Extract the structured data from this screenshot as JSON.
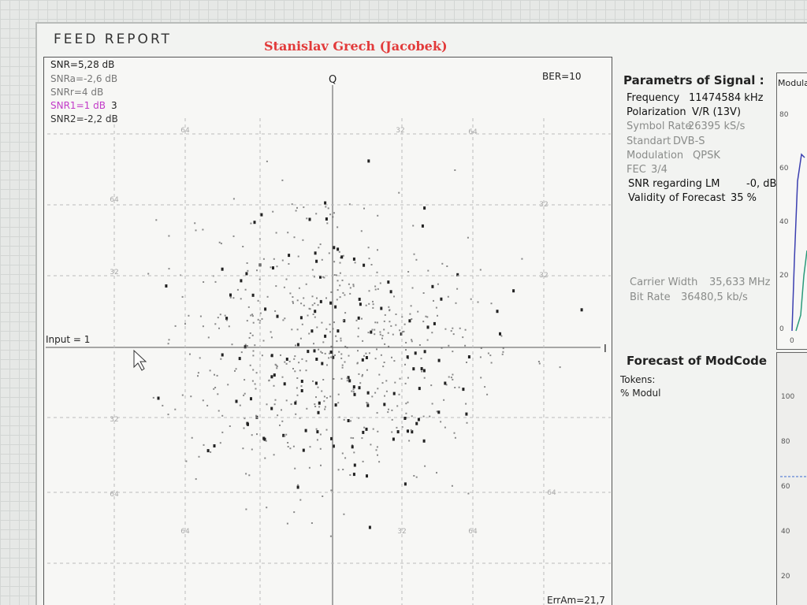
{
  "header": {
    "title": "FEED REPORT",
    "author": "Stanislav Grech (Jacobek)"
  },
  "constellation": {
    "snr": [
      "SNR=5,28 dB",
      "SNRa=-2,6 dB",
      "SNRr=4 dB",
      "SNR1=1 dB",
      "SNR2=-2,2 dB"
    ],
    "snr1_extra": "3",
    "ber": "BER=10",
    "q_axis": "Q",
    "i_axis": "I",
    "input": "Input = 1",
    "err": "ErrAm=21,7",
    "grid_labels": [
      "64",
      "32",
      "64",
      "64",
      "32",
      "32",
      "32",
      "32",
      "64",
      "64",
      "64",
      "32",
      "64"
    ]
  },
  "parameters": {
    "title": "Parametrs of Signal :",
    "rows": [
      [
        "Frequency",
        "11474584 kHz"
      ],
      [
        "Polarization",
        "V/R (13V)"
      ],
      [
        "Symbol Rate",
        "26395 kS/s"
      ],
      [
        "Standart",
        "DVB-S"
      ],
      [
        "Modulation",
        "QPSK"
      ],
      [
        "FEC",
        "3/4"
      ],
      [
        "SNR regarding LM",
        "-0, dB"
      ],
      [
        "Validity of Forecast",
        "35 %"
      ]
    ],
    "carrier": [
      [
        "Carrier Width",
        "35,633 MHz"
      ],
      [
        "Bit Rate",
        "36480,5 kb/s"
      ]
    ]
  },
  "forecast": {
    "title": "Forecast of ModCode",
    "lines": [
      "Tokens:",
      "% Modul"
    ]
  },
  "side_chart": {
    "title": "Modula",
    "yticks": [
      "80",
      "60",
      "40",
      "20",
      "0"
    ],
    "xtick": "0"
  },
  "side_chart2": {
    "yticks": [
      "100",
      "80",
      "60",
      "40",
      "20"
    ]
  }
}
